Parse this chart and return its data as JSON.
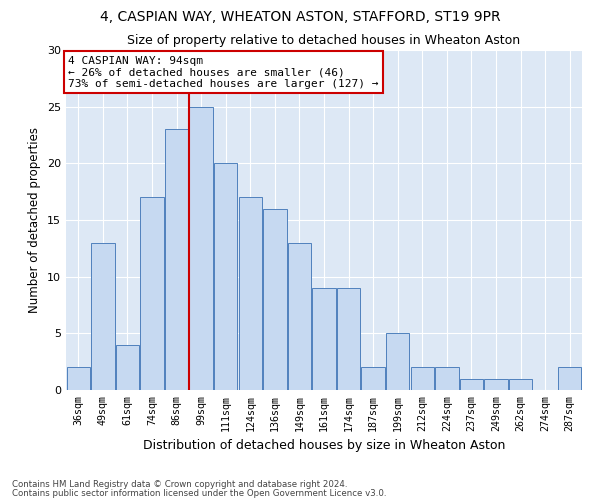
{
  "title": "4, CASPIAN WAY, WHEATON ASTON, STAFFORD, ST19 9PR",
  "subtitle": "Size of property relative to detached houses in Wheaton Aston",
  "xlabel": "Distribution of detached houses by size in Wheaton Aston",
  "ylabel": "Number of detached properties",
  "bins": [
    "36sqm",
    "49sqm",
    "61sqm",
    "74sqm",
    "86sqm",
    "99sqm",
    "111sqm",
    "124sqm",
    "136sqm",
    "149sqm",
    "161sqm",
    "174sqm",
    "187sqm",
    "199sqm",
    "212sqm",
    "224sqm",
    "237sqm",
    "249sqm",
    "262sqm",
    "274sqm",
    "287sqm"
  ],
  "values": [
    2,
    13,
    4,
    17,
    23,
    25,
    20,
    17,
    16,
    13,
    9,
    9,
    2,
    5,
    2,
    2,
    1,
    1,
    1,
    0,
    2
  ],
  "bar_color": "#c6d9f1",
  "bar_edge_color": "#4f81bd",
  "vline_x": 4.5,
  "vline_color": "#cc0000",
  "annotation_text": "4 CASPIAN WAY: 94sqm\n← 26% of detached houses are smaller (46)\n73% of semi-detached houses are larger (127) →",
  "annotation_box_color": "#ffffff",
  "annotation_box_edge": "#cc0000",
  "ylim": [
    0,
    30
  ],
  "yticks": [
    0,
    5,
    10,
    15,
    20,
    25,
    30
  ],
  "footer_line1": "Contains HM Land Registry data © Crown copyright and database right 2024.",
  "footer_line2": "Contains public sector information licensed under the Open Government Licence v3.0.",
  "bg_color": "#ffffff",
  "plot_bg_color": "#dde8f5",
  "grid_color": "#ffffff",
  "title_fontsize": 10,
  "subtitle_fontsize": 9,
  "ylabel_fontsize": 8.5,
  "xlabel_fontsize": 9
}
